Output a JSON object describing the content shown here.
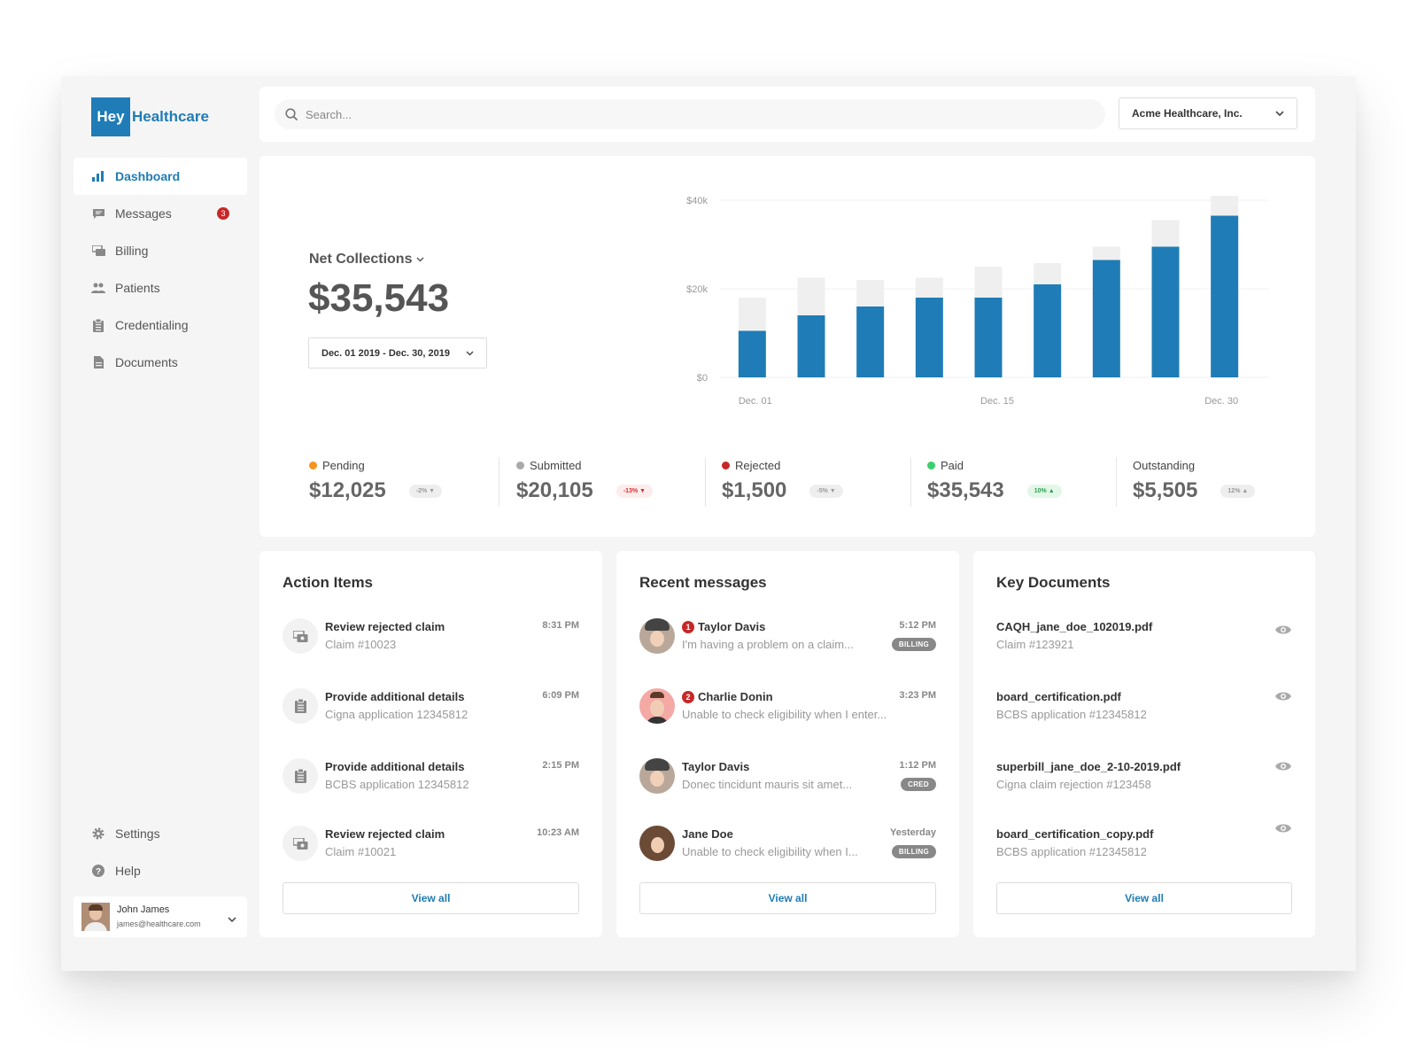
{
  "brand": {
    "hey": "Hey",
    "name": "Healthcare",
    "color": "#1f7cb6"
  },
  "sidebar": {
    "items": [
      {
        "label": "Dashboard",
        "icon": "bar-chart-icon",
        "active": true
      },
      {
        "label": "Messages",
        "icon": "message-icon",
        "badge": "3"
      },
      {
        "label": "Billing",
        "icon": "billing-icon"
      },
      {
        "label": "Patients",
        "icon": "patients-icon"
      },
      {
        "label": "Credentialing",
        "icon": "clipboard-icon"
      },
      {
        "label": "Documents",
        "icon": "document-icon"
      }
    ],
    "settings": "Settings",
    "help": "Help",
    "user": {
      "name": "John James",
      "email": "james@healthcare.com"
    }
  },
  "header": {
    "search_placeholder": "Search...",
    "org": "Acme Healthcare, Inc."
  },
  "summary": {
    "title": "Net Collections",
    "amount": "$35,543",
    "date_range": "Dec. 01 2019 - Dec. 30, 2019"
  },
  "chart_data": {
    "type": "bar",
    "stacked": true,
    "x_tick_labels": [
      "Dec. 01",
      "Dec. 15",
      "Dec. 30"
    ],
    "y_tick_labels": [
      "$0",
      "$20k",
      "$40k"
    ],
    "ylim": [
      0,
      40000
    ],
    "grid": true,
    "series": [
      {
        "color": "#1f7cb6",
        "values": [
          10500,
          14000,
          16000,
          18000,
          18000,
          21000,
          26500,
          29500,
          36500
        ]
      },
      {
        "color": "#efefef",
        "values": [
          7500,
          8500,
          6000,
          4500,
          7000,
          4800,
          3000,
          6000,
          4500
        ]
      }
    ]
  },
  "stats": [
    {
      "label": "Pending",
      "value": "$12,025",
      "change": "-2% ▼",
      "dot": "#f5941e",
      "chip_bg": "#eeeeee",
      "chip_fg": "#999999"
    },
    {
      "label": "Submitted",
      "value": "$20,105",
      "change": "-13% ▼",
      "dot": "#aaaaaa",
      "chip_bg": "#fdecec",
      "chip_fg": "#d32f2f"
    },
    {
      "label": "Rejected",
      "value": "$1,500",
      "change": "-5% ▼",
      "dot": "#c62828",
      "chip_bg": "#eeeeee",
      "chip_fg": "#999999"
    },
    {
      "label": "Paid",
      "value": "$35,543",
      "change": "10% ▲",
      "dot": "#3ccf6c",
      "chip_bg": "#e3f7e8",
      "chip_fg": "#2e9e4f"
    },
    {
      "label": "Outstanding",
      "value": "$5,505",
      "change": "12% ▲",
      "dot": "",
      "chip_bg": "#eeeeee",
      "chip_fg": "#999999"
    }
  ],
  "action_items": {
    "title": "Action Items",
    "items": [
      {
        "title": "Review rejected claim",
        "sub": "Claim #10023",
        "time": "8:31 PM",
        "icon": "billing-icon"
      },
      {
        "title": "Provide additional details",
        "sub": "Cigna application 12345812",
        "time": "6:09 PM",
        "icon": "clipboard-icon"
      },
      {
        "title": "Provide additional details",
        "sub": "BCBS application 12345812",
        "time": "2:15 PM",
        "icon": "clipboard-icon"
      },
      {
        "title": "Review rejected claim",
        "sub": "Claim #10021",
        "time": "10:23 AM",
        "icon": "billing-icon"
      }
    ],
    "view_all": "View all"
  },
  "messages": {
    "title": "Recent messages",
    "items": [
      {
        "name": "Taylor Davis",
        "badge": "1",
        "preview": "I'm having a problem on a claim...",
        "time": "5:12 PM",
        "tag": "BILLING"
      },
      {
        "name": "Charlie Donin",
        "badge": "2",
        "preview": "Unable to check eligibility when I enter...",
        "time": "3:23 PM",
        "tag": ""
      },
      {
        "name": "Taylor Davis",
        "badge": "",
        "preview": "Donec tincidunt mauris sit amet...",
        "time": "1:12 PM",
        "tag": "CRED"
      },
      {
        "name": "Jane Doe",
        "badge": "",
        "preview": "Unable to check eligibility when I...",
        "time": "Yesterday",
        "tag": "BILLING"
      }
    ],
    "view_all": "View all"
  },
  "documents": {
    "title": "Key Documents",
    "items": [
      {
        "name": "CAQH_jane_doe_102019.pdf",
        "sub": "Claim #123921"
      },
      {
        "name": "board_certification.pdf",
        "sub": "BCBS application #12345812"
      },
      {
        "name": "superbill_jane_doe_2-10-2019.pdf",
        "sub": "Cigna claim rejection #123458"
      },
      {
        "name": "board_certification_copy.pdf",
        "sub": "BCBS application #12345812"
      }
    ],
    "view_all": "View all"
  }
}
